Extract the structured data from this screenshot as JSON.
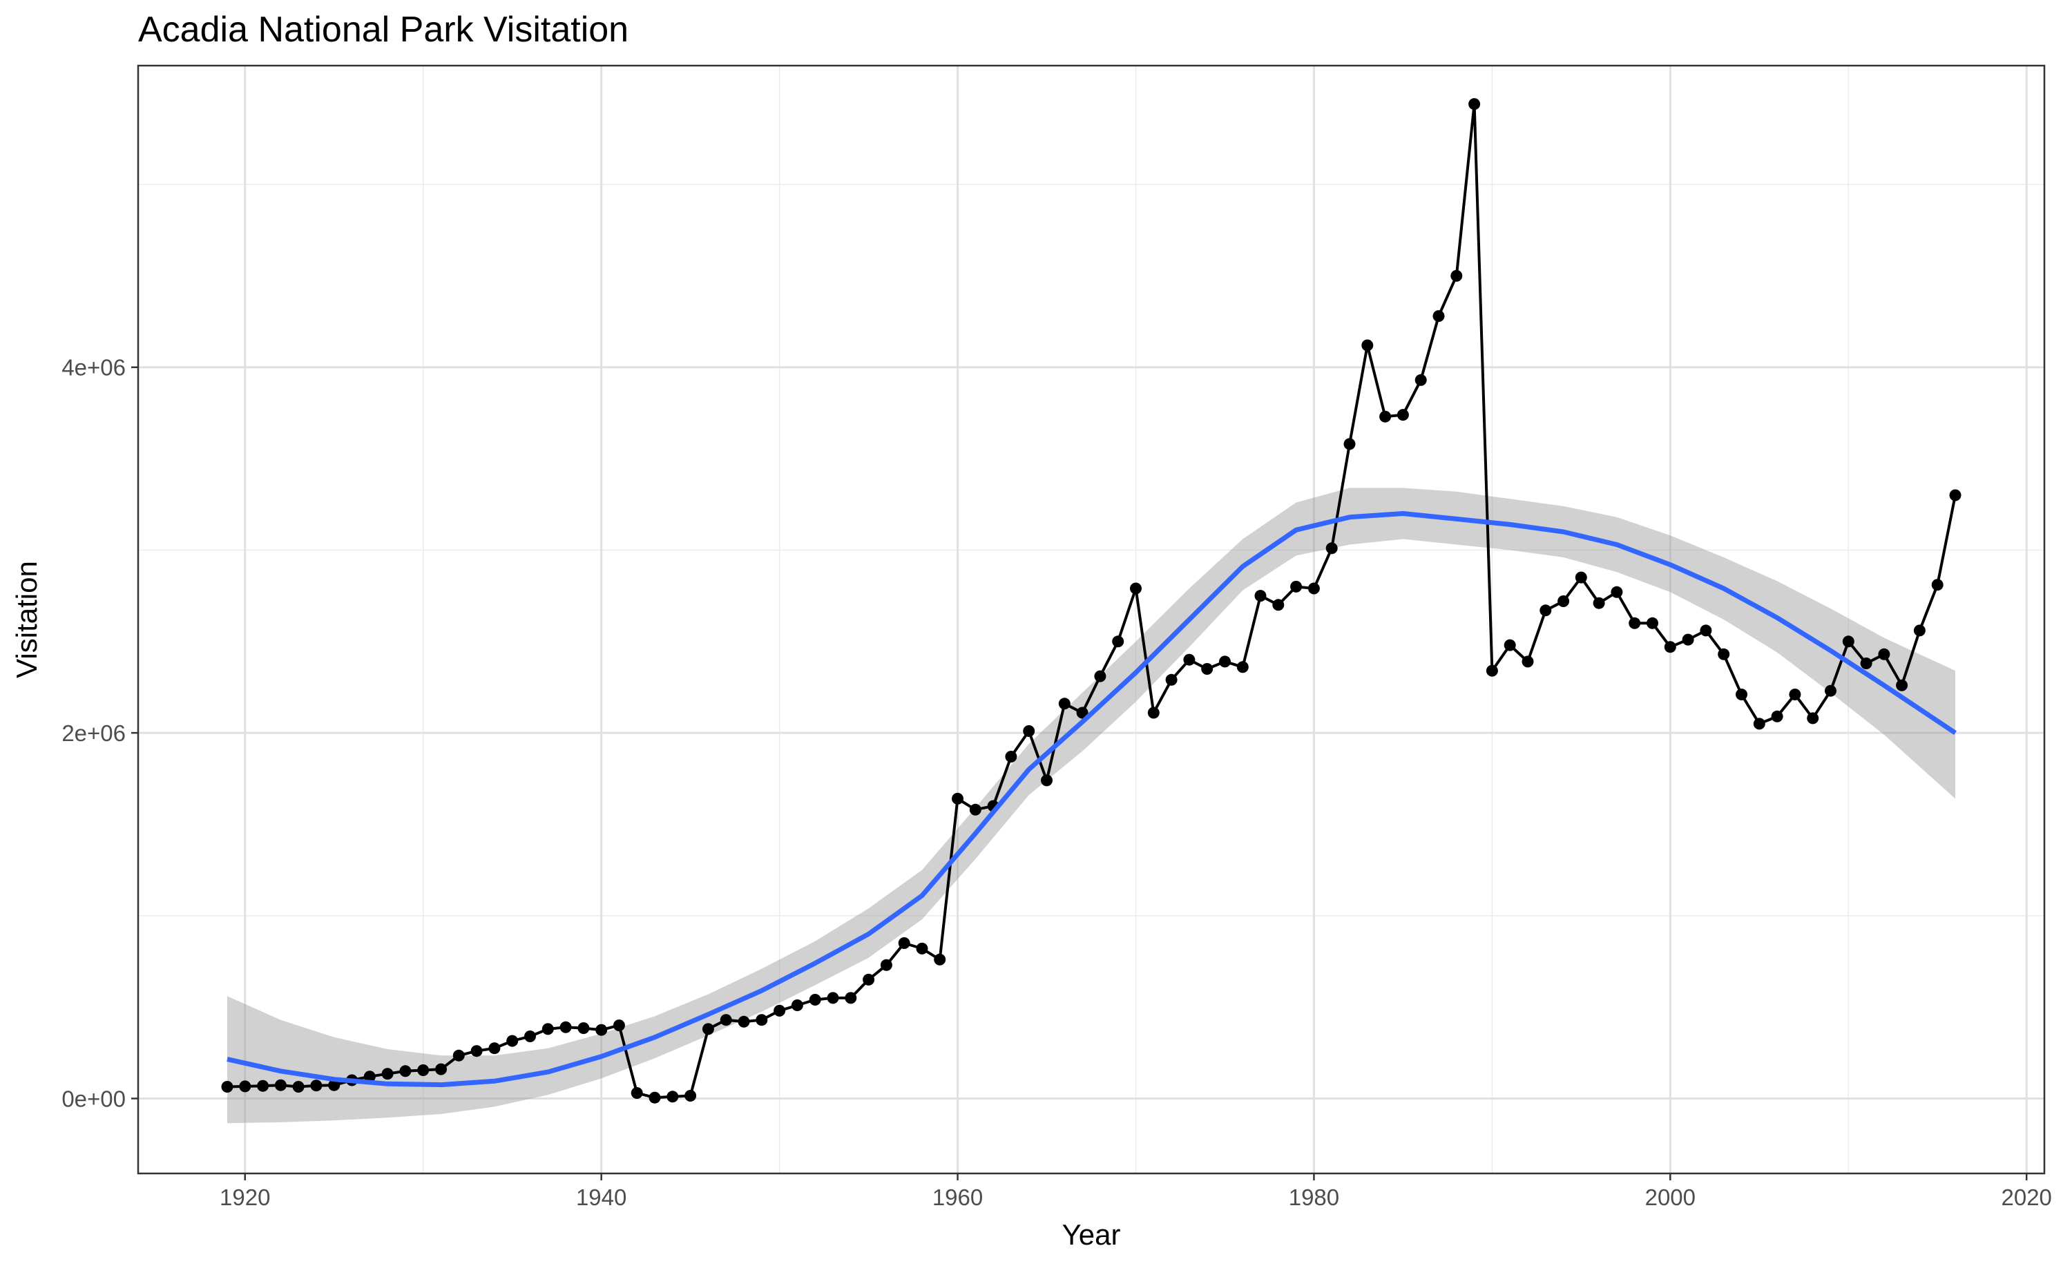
{
  "chart_data": {
    "type": "line",
    "title": "Acadia National Park Visitation",
    "xlabel": "Year",
    "ylabel": "Visitation",
    "xlim": [
      1914,
      2021
    ],
    "ylim": [
      -410000,
      5650000
    ],
    "x_ticks": [
      1920,
      1940,
      1960,
      1980,
      2000,
      2020
    ],
    "x_tick_labels": [
      "1920",
      "1940",
      "1960",
      "1980",
      "2000",
      "2020"
    ],
    "y_ticks": [
      0,
      2000000,
      4000000
    ],
    "y_tick_labels": [
      "0e+00",
      "2e+06",
      "4e+06"
    ],
    "grid": true,
    "series": [
      {
        "style": "line+points",
        "color": "#000000",
        "x": [
          1919,
          1920,
          1921,
          1922,
          1923,
          1924,
          1925,
          1926,
          1927,
          1928,
          1929,
          1930,
          1931,
          1932,
          1933,
          1934,
          1935,
          1936,
          1937,
          1938,
          1939,
          1940,
          1941,
          1942,
          1943,
          1944,
          1945,
          1946,
          1947,
          1948,
          1949,
          1950,
          1951,
          1952,
          1953,
          1954,
          1955,
          1956,
          1957,
          1958,
          1959,
          1960,
          1961,
          1962,
          1963,
          1964,
          1965,
          1966,
          1967,
          1968,
          1969,
          1970,
          1971,
          1972,
          1973,
          1974,
          1975,
          1976,
          1977,
          1978,
          1979,
          1980,
          1981,
          1982,
          1983,
          1984,
          1985,
          1986,
          1987,
          1988,
          1989,
          1990,
          1991,
          1992,
          1993,
          1994,
          1995,
          1996,
          1997,
          1998,
          1999,
          2000,
          2001,
          2002,
          2003,
          2004,
          2005,
          2006,
          2007,
          2008,
          2009,
          2010,
          2011,
          2012,
          2013,
          2014,
          2015,
          2016
        ],
        "y": [
          64000,
          66500,
          69000,
          73000,
          64000,
          71000,
          73000,
          100000,
          120000,
          135000,
          150000,
          155000,
          160000,
          235000,
          260000,
          275000,
          315000,
          340000,
          380000,
          390000,
          385000,
          375000,
          400000,
          30000,
          5000,
          10000,
          15000,
          380000,
          430000,
          420000,
          430000,
          480000,
          510000,
          540000,
          550000,
          550000,
          650000,
          730000,
          850000,
          820000,
          760000,
          1640000,
          1580000,
          1600000,
          1870000,
          2010000,
          1740000,
          2160000,
          2110000,
          2310000,
          2500000,
          2790000,
          2110000,
          2290000,
          2400000,
          2350000,
          2390000,
          2360000,
          2750000,
          2700000,
          2800000,
          2790000,
          3010000,
          3580000,
          4120000,
          3730000,
          3740000,
          3930000,
          4280000,
          4500000,
          5440000,
          2340000,
          2480000,
          2390000,
          2670000,
          2720000,
          2850000,
          2710000,
          2770000,
          2600000,
          2600000,
          2470000,
          2510000,
          2560000,
          2430000,
          2210000,
          2050000,
          2090000,
          2210000,
          2080000,
          2230000,
          2500000,
          2380000,
          2430000,
          2260000,
          2560000,
          2810000,
          3300000
        ]
      },
      {
        "style": "smooth",
        "color": "#3366FF",
        "x": [
          1919,
          1922,
          1925,
          1928,
          1931,
          1934,
          1937,
          1940,
          1943,
          1946,
          1949,
          1952,
          1955,
          1958,
          1961,
          1964,
          1967,
          1970,
          1973,
          1976,
          1979,
          1982,
          1985,
          1988,
          1991,
          1994,
          1997,
          2000,
          2003,
          2006,
          2009,
          2012,
          2016
        ],
        "y": [
          215000,
          150000,
          105000,
          80000,
          75000,
          95000,
          145000,
          230000,
          335000,
          460000,
          590000,
          740000,
          900000,
          1110000,
          1450000,
          1800000,
          2060000,
          2330000,
          2620000,
          2910000,
          3110000,
          3180000,
          3200000,
          3170000,
          3140000,
          3100000,
          3030000,
          2920000,
          2790000,
          2630000,
          2450000,
          2260000,
          2000000
        ],
        "ci_lower": [
          -135000,
          -130000,
          -120000,
          -105000,
          -85000,
          -45000,
          20000,
          110000,
          220000,
          345000,
          475000,
          620000,
          770000,
          980000,
          1310000,
          1660000,
          1900000,
          2170000,
          2470000,
          2780000,
          2970000,
          3030000,
          3060000,
          3030000,
          3000000,
          2960000,
          2880000,
          2770000,
          2620000,
          2440000,
          2220000,
          1990000,
          1640000
        ],
        "ci_upper": [
          560000,
          430000,
          335000,
          270000,
          235000,
          235000,
          275000,
          355000,
          450000,
          570000,
          710000,
          860000,
          1040000,
          1250000,
          1590000,
          1940000,
          2220000,
          2500000,
          2790000,
          3060000,
          3260000,
          3340000,
          3340000,
          3320000,
          3280000,
          3240000,
          3180000,
          3080000,
          2960000,
          2830000,
          2680000,
          2520000,
          2340000
        ]
      }
    ]
  }
}
